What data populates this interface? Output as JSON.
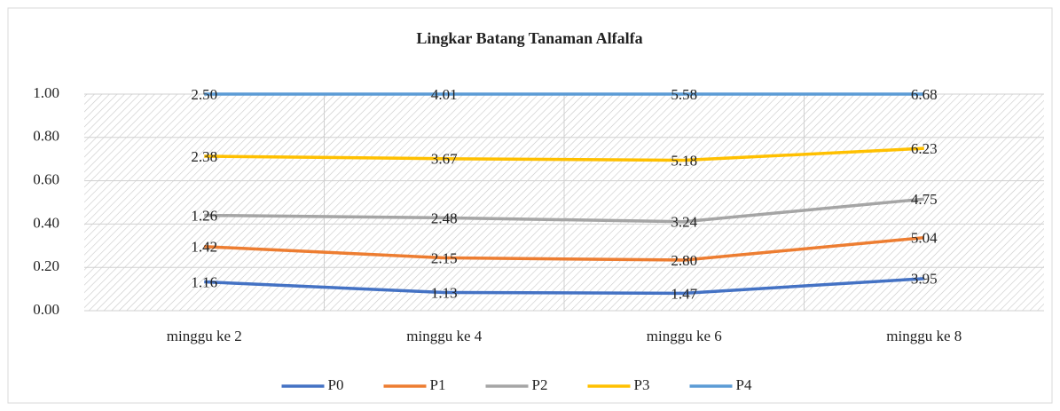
{
  "chart_data": {
    "type": "line",
    "stacking": "percent",
    "title": "Lingkar Batang Tanaman  Alfalfa",
    "categories": [
      "minggu ke 2",
      "minggu ke 4",
      "minggu ke 6",
      "minggu ke 8"
    ],
    "series": [
      {
        "name": "P0",
        "color": "#4472c4",
        "values": [
          1.16,
          1.13,
          1.47,
          3.95
        ],
        "value_labels": [
          "1.16",
          "1.13",
          "1.47",
          "3.95"
        ]
      },
      {
        "name": "P1",
        "color": "#ed7d31",
        "values": [
          1.42,
          2.15,
          2.8,
          5.04
        ],
        "value_labels": [
          "1.42",
          "2.15",
          "2.80",
          "5.04"
        ]
      },
      {
        "name": "P2",
        "color": "#a5a5a5",
        "values": [
          1.26,
          2.48,
          3.24,
          4.75
        ],
        "value_labels": [
          "1.26",
          "2.48",
          "3.24",
          "4.75"
        ]
      },
      {
        "name": "P3",
        "color": "#ffc000",
        "values": [
          2.38,
          3.67,
          5.18,
          6.23
        ],
        "value_labels": [
          "2.38",
          "3.67",
          "5.18",
          "6.23"
        ]
      },
      {
        "name": "P4",
        "color": "#5b9bd5",
        "values": [
          2.5,
          4.01,
          5.58,
          6.68
        ],
        "value_labels": [
          "2.50",
          "4.01",
          "5.58",
          "6.68"
        ]
      }
    ],
    "ylim": [
      0,
      1
    ],
    "yticks": [
      {
        "value": 0,
        "label": "0.00"
      },
      {
        "value": 0.2,
        "label": "0.20"
      },
      {
        "value": 0.4,
        "label": "0.40"
      },
      {
        "value": 0.6,
        "label": "0.60"
      },
      {
        "value": 0.8,
        "label": "0.80"
      },
      {
        "value": 1,
        "label": "1.00"
      }
    ],
    "grid": true,
    "legend": "bottom"
  }
}
